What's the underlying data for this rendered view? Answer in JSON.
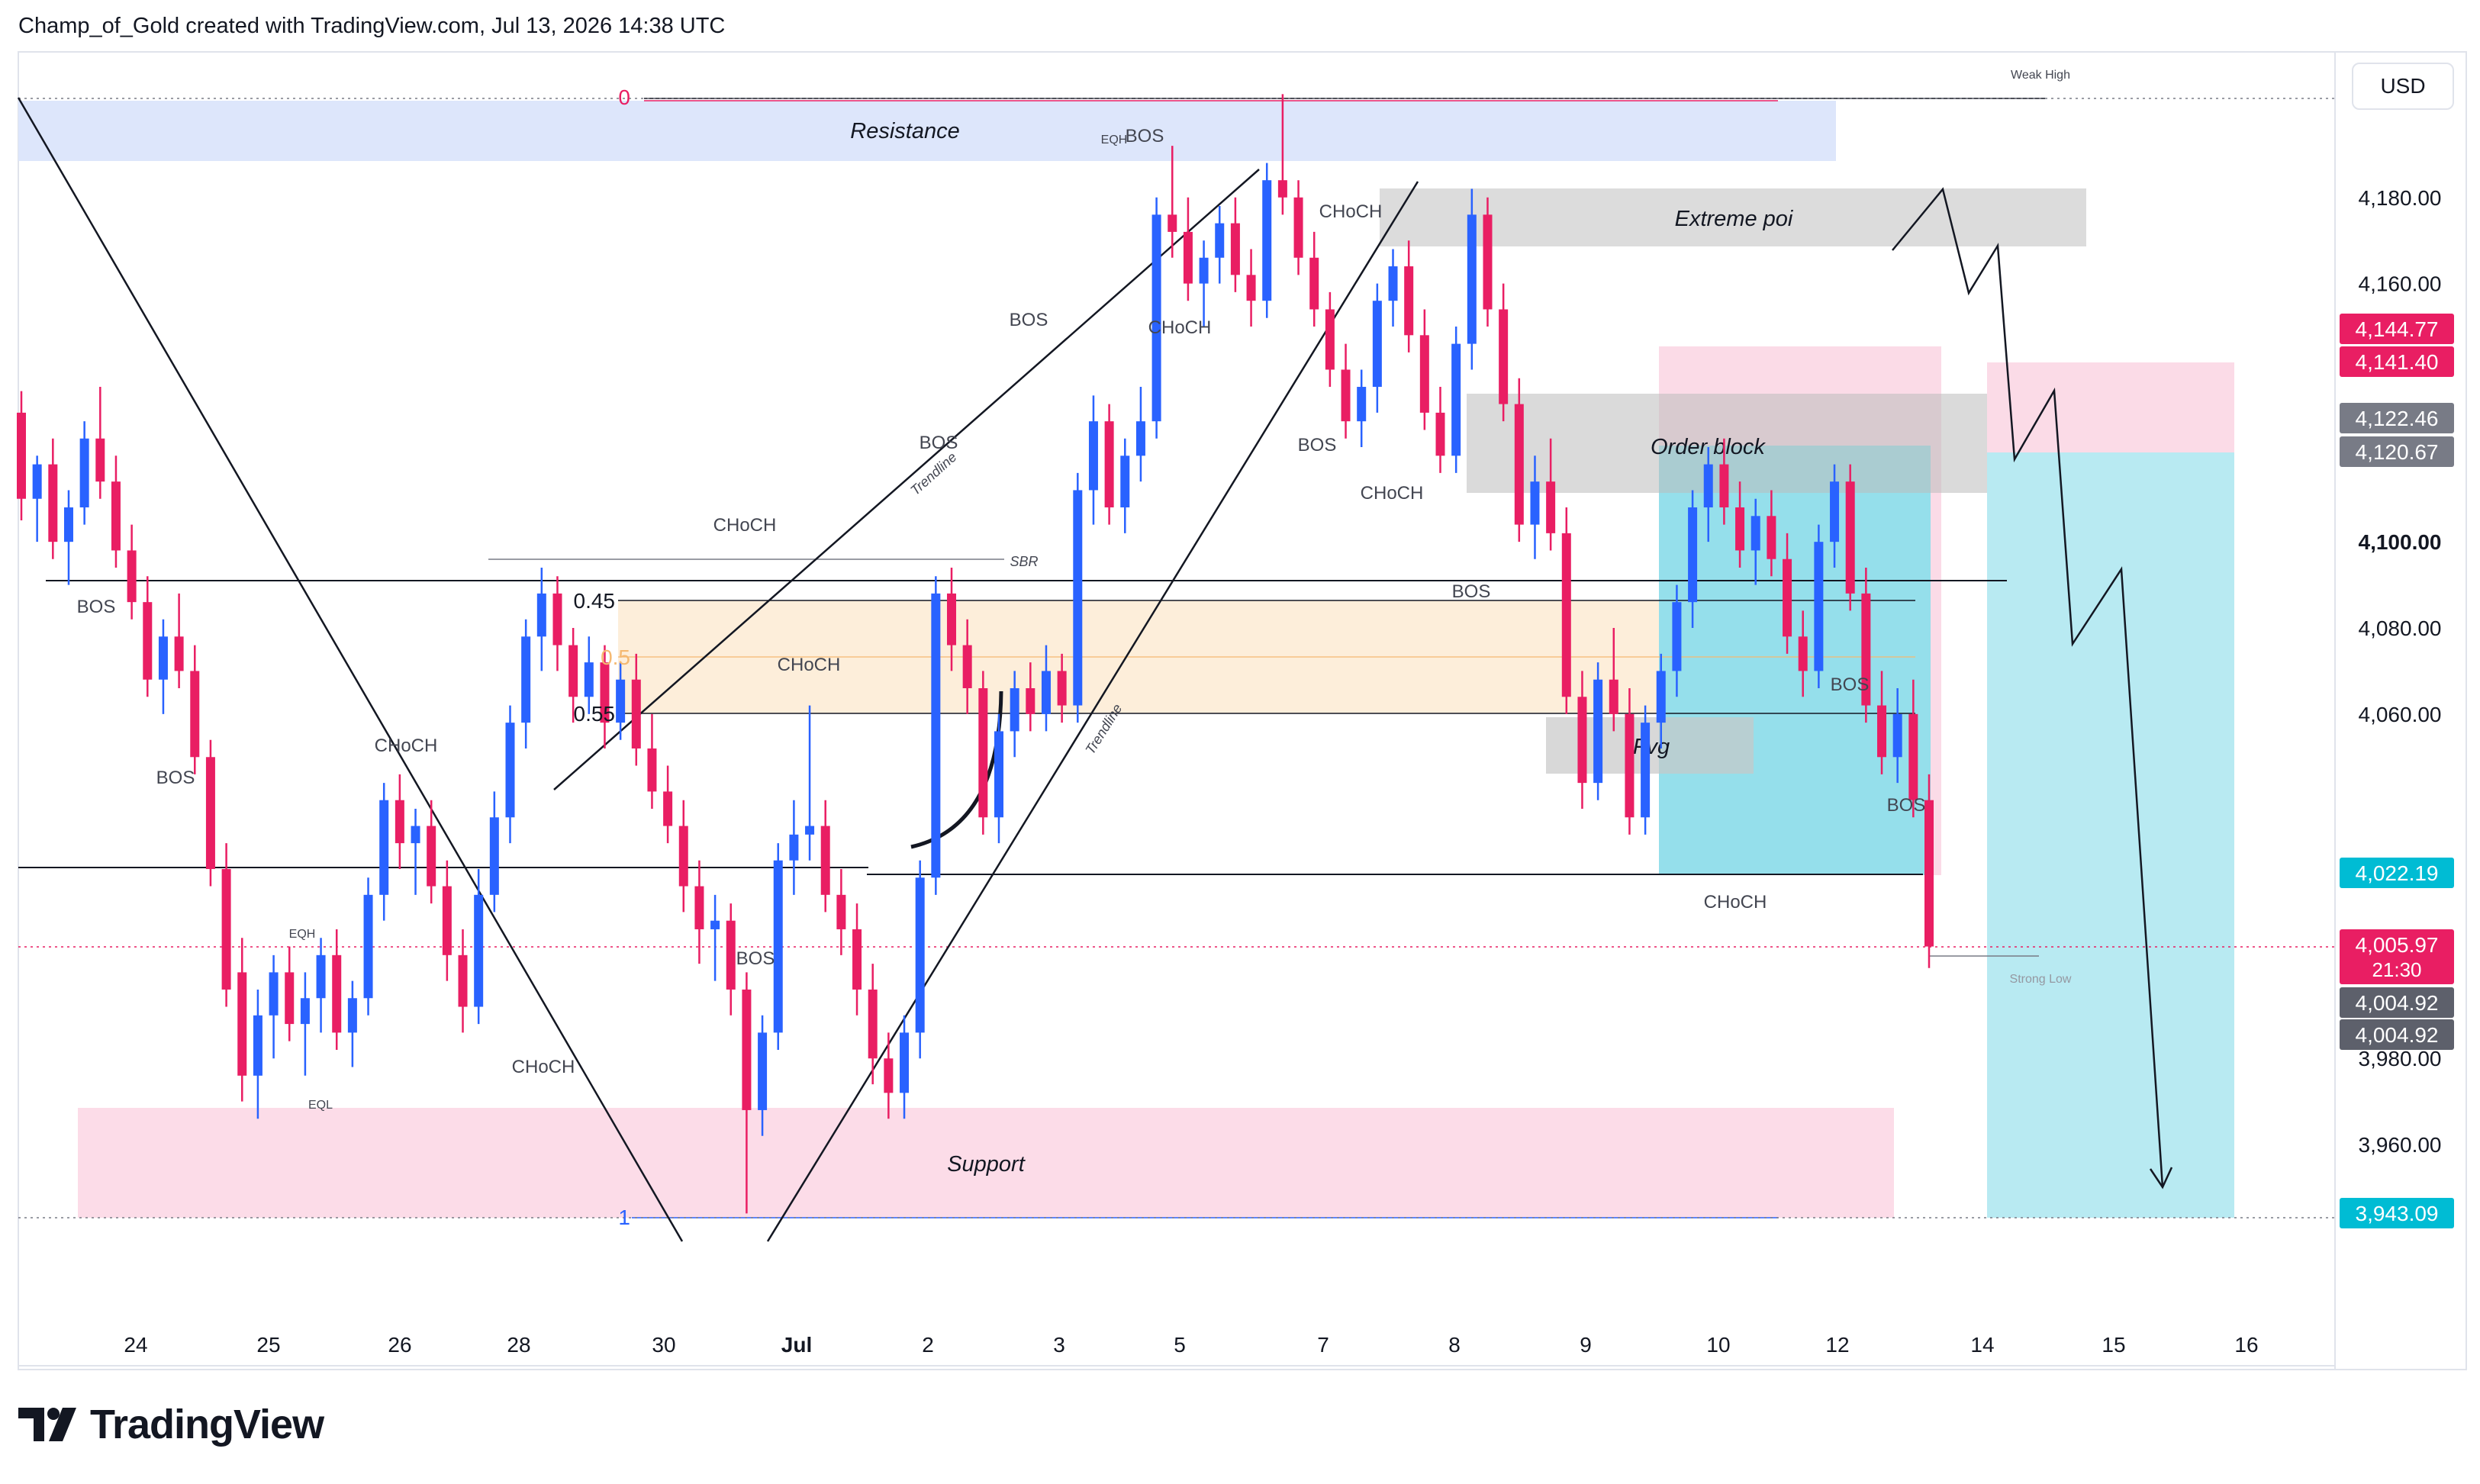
{
  "header": {
    "title": "Champ_of_Gold created with TradingView.com, Jul 13, 2026 14:38 UTC"
  },
  "currency": "USD",
  "footer": {
    "brand": "TradingView"
  },
  "colors": {
    "up": "#2962ff",
    "down": "#e91e63",
    "resistance_zone": "#dde6fb",
    "support_zone": "#fcdce8",
    "grey_zone": "#d8d8d8",
    "fib_zone": "#fdebd3",
    "short_target": "#b8eaf2",
    "short_stop": "#fbdbe7"
  },
  "chart_data": {
    "type": "candlestick",
    "symbol_currency": "USD",
    "x_ticks": [
      "24",
      "25",
      "26",
      "28",
      "30",
      "Jul",
      "2",
      "3",
      "5",
      "7",
      "8",
      "9",
      "10",
      "12",
      "14",
      "15",
      "16"
    ],
    "y_ticks": [
      3960,
      3980,
      4060,
      4080,
      4100,
      4160,
      4180
    ],
    "ylim": [
      3935,
      4205
    ],
    "price_labels": [
      {
        "text": "4,144.77",
        "value": 4144.77,
        "color": "#e91e63"
      },
      {
        "text": "4,141.40",
        "value": 4141.4,
        "color": "#e91e63"
      },
      {
        "text": "4,122.46",
        "value": 4122.46,
        "color": "#787b86"
      },
      {
        "text": "4,120.67",
        "value": 4120.67,
        "color": "#787b86"
      },
      {
        "text": "4,022.19",
        "value": 4022.19,
        "color": "#00bcd4"
      },
      {
        "text": "4,005.97",
        "value": 4005.97,
        "color": "#e91e63",
        "sub": "21:30"
      },
      {
        "text": "4,004.92",
        "value": 4004.92,
        "color": "#5d606b"
      },
      {
        "text": "4,004.92",
        "value": 4004.92,
        "color": "#5d606b"
      },
      {
        "text": "3,943.09",
        "value": 3943.09,
        "color": "#00bcd4"
      }
    ],
    "zones": [
      {
        "label": "Resistance",
        "from": 4190,
        "to": 4203
      },
      {
        "label": "Extreme poi",
        "from": 4168,
        "to": 4182
      },
      {
        "label": "Order block",
        "from": 4110,
        "to": 4130
      },
      {
        "label": "Fvg",
        "from": 4046,
        "to": 4059
      },
      {
        "label": "Support",
        "from": 3943,
        "to": 3968
      }
    ],
    "fib_levels": [
      {
        "label": "0",
        "value": 4203
      },
      {
        "label": "0.45",
        "value": 4085
      },
      {
        "label": "0.5",
        "value": 4072
      },
      {
        "label": "0.55",
        "value": 4059
      },
      {
        "label": "1",
        "value": 3943
      }
    ],
    "structure_labels": [
      "BOS",
      "BOS",
      "CHoCH",
      "EQH",
      "EQL",
      "CHoCH",
      "CHoCH",
      "BOS",
      "CHoCH",
      "BOS",
      "SBR",
      "BOS",
      "EQH",
      "BOS",
      "CHoCH",
      "CHoCH",
      "BOS",
      "CHoCH",
      "BOS",
      "CHoCH",
      "BOS",
      "BOS"
    ],
    "annotations": [
      "Weak High",
      "Strong Low",
      "Trendline",
      "Trendline"
    ],
    "candles": [
      [
        4130,
        4135,
        4105,
        4110
      ],
      [
        4110,
        4120,
        4100,
        4118
      ],
      [
        4118,
        4124,
        4096,
        4100
      ],
      [
        4100,
        4112,
        4090,
        4108
      ],
      [
        4108,
        4128,
        4104,
        4124
      ],
      [
        4124,
        4136,
        4110,
        4114
      ],
      [
        4114,
        4120,
        4094,
        4098
      ],
      [
        4098,
        4104,
        4082,
        4086
      ],
      [
        4086,
        4092,
        4064,
        4068
      ],
      [
        4068,
        4082,
        4060,
        4078
      ],
      [
        4078,
        4088,
        4066,
        4070
      ],
      [
        4070,
        4076,
        4046,
        4050
      ],
      [
        4050,
        4054,
        4020,
        4024
      ],
      [
        4024,
        4030,
        3992,
        3996
      ],
      [
        4000,
        4008,
        3970,
        3976
      ],
      [
        3976,
        3996,
        3966,
        3990
      ],
      [
        3990,
        4004,
        3980,
        4000
      ],
      [
        4000,
        4006,
        3984,
        3988
      ],
      [
        3988,
        4000,
        3976,
        3994
      ],
      [
        3994,
        4008,
        3986,
        4004
      ],
      [
        4004,
        4010,
        3982,
        3986
      ],
      [
        3986,
        3998,
        3978,
        3994
      ],
      [
        3994,
        4022,
        3990,
        4018
      ],
      [
        4018,
        4044,
        4012,
        4040
      ],
      [
        4040,
        4046,
        4024,
        4030
      ],
      [
        4030,
        4038,
        4018,
        4034
      ],
      [
        4034,
        4040,
        4016,
        4020
      ],
      [
        4020,
        4026,
        3998,
        4004
      ],
      [
        4004,
        4010,
        3986,
        3992
      ],
      [
        3992,
        4024,
        3988,
        4018
      ],
      [
        4018,
        4042,
        4014,
        4036
      ],
      [
        4036,
        4062,
        4030,
        4058
      ],
      [
        4058,
        4082,
        4052,
        4078
      ],
      [
        4078,
        4094,
        4070,
        4088
      ],
      [
        4088,
        4092,
        4070,
        4076
      ],
      [
        4076,
        4080,
        4058,
        4064
      ],
      [
        4064,
        4078,
        4060,
        4072
      ],
      [
        4072,
        4076,
        4052,
        4058
      ],
      [
        4058,
        4072,
        4054,
        4068
      ],
      [
        4068,
        4074,
        4048,
        4052
      ],
      [
        4052,
        4060,
        4038,
        4042
      ],
      [
        4042,
        4048,
        4030,
        4034
      ],
      [
        4034,
        4040,
        4014,
        4020
      ],
      [
        4020,
        4026,
        4002,
        4010
      ],
      [
        4010,
        4018,
        3998,
        4012
      ],
      [
        4012,
        4016,
        3990,
        3996
      ],
      [
        3996,
        4000,
        3944,
        3968
      ],
      [
        3968,
        3990,
        3962,
        3986
      ],
      [
        3986,
        4030,
        3982,
        4026
      ],
      [
        4026,
        4040,
        4018,
        4032
      ],
      [
        4032,
        4062,
        4026,
        4034
      ],
      [
        4034,
        4040,
        4014,
        4018
      ],
      [
        4018,
        4024,
        4004,
        4010
      ],
      [
        4010,
        4016,
        3990,
        3996
      ],
      [
        3996,
        4002,
        3974,
        3980
      ],
      [
        3980,
        3986,
        3966,
        3972
      ],
      [
        3972,
        3990,
        3966,
        3986
      ],
      [
        3986,
        4026,
        3980,
        4022
      ],
      [
        4022,
        4092,
        4018,
        4088
      ],
      [
        4088,
        4094,
        4070,
        4076
      ],
      [
        4076,
        4082,
        4060,
        4066
      ],
      [
        4066,
        4070,
        4032,
        4036
      ],
      [
        4036,
        4060,
        4030,
        4056
      ],
      [
        4056,
        4070,
        4050,
        4066
      ],
      [
        4066,
        4072,
        4056,
        4060
      ],
      [
        4060,
        4076,
        4056,
        4070
      ],
      [
        4070,
        4074,
        4058,
        4062
      ],
      [
        4062,
        4116,
        4058,
        4112
      ],
      [
        4112,
        4134,
        4104,
        4128
      ],
      [
        4128,
        4132,
        4104,
        4108
      ],
      [
        4108,
        4124,
        4102,
        4120
      ],
      [
        4120,
        4136,
        4114,
        4128
      ],
      [
        4128,
        4180,
        4124,
        4176
      ],
      [
        4176,
        4192,
        4166,
        4172
      ],
      [
        4172,
        4180,
        4156,
        4160
      ],
      [
        4160,
        4170,
        4150,
        4166
      ],
      [
        4166,
        4178,
        4160,
        4174
      ],
      [
        4174,
        4180,
        4158,
        4162
      ],
      [
        4162,
        4168,
        4150,
        4156
      ],
      [
        4156,
        4188,
        4152,
        4184
      ],
      [
        4184,
        4204,
        4176,
        4180
      ],
      [
        4180,
        4184,
        4162,
        4166
      ],
      [
        4166,
        4172,
        4150,
        4154
      ],
      [
        4154,
        4158,
        4136,
        4140
      ],
      [
        4140,
        4146,
        4124,
        4128
      ],
      [
        4128,
        4140,
        4122,
        4136
      ],
      [
        4136,
        4160,
        4130,
        4156
      ],
      [
        4156,
        4168,
        4150,
        4164
      ],
      [
        4164,
        4170,
        4144,
        4148
      ],
      [
        4148,
        4154,
        4126,
        4130
      ],
      [
        4130,
        4136,
        4116,
        4120
      ],
      [
        4120,
        4150,
        4116,
        4146
      ],
      [
        4146,
        4182,
        4140,
        4176
      ],
      [
        4176,
        4180,
        4150,
        4154
      ],
      [
        4154,
        4160,
        4128,
        4132
      ],
      [
        4132,
        4138,
        4100,
        4104
      ],
      [
        4104,
        4120,
        4096,
        4114
      ],
      [
        4114,
        4124,
        4098,
        4102
      ],
      [
        4102,
        4108,
        4060,
        4064
      ],
      [
        4064,
        4070,
        4038,
        4044
      ],
      [
        4044,
        4072,
        4040,
        4068
      ],
      [
        4068,
        4080,
        4056,
        4060
      ],
      [
        4060,
        4066,
        4032,
        4036
      ],
      [
        4036,
        4062,
        4032,
        4058
      ],
      [
        4058,
        4074,
        4052,
        4070
      ],
      [
        4070,
        4090,
        4064,
        4086
      ],
      [
        4086,
        4112,
        4080,
        4108
      ],
      [
        4108,
        4122,
        4100,
        4118
      ],
      [
        4118,
        4124,
        4104,
        4108
      ],
      [
        4108,
        4114,
        4094,
        4098
      ],
      [
        4098,
        4110,
        4090,
        4106
      ],
      [
        4106,
        4112,
        4092,
        4096
      ],
      [
        4096,
        4102,
        4074,
        4078
      ],
      [
        4078,
        4084,
        4064,
        4070
      ],
      [
        4070,
        4104,
        4066,
        4100
      ],
      [
        4100,
        4118,
        4094,
        4114
      ],
      [
        4114,
        4118,
        4084,
        4088
      ],
      [
        4088,
        4094,
        4058,
        4062
      ],
      [
        4062,
        4070,
        4046,
        4050
      ],
      [
        4050,
        4066,
        4044,
        4060
      ],
      [
        4060,
        4068,
        4036,
        4040
      ],
      [
        4040,
        4046,
        4001,
        4006
      ]
    ]
  }
}
